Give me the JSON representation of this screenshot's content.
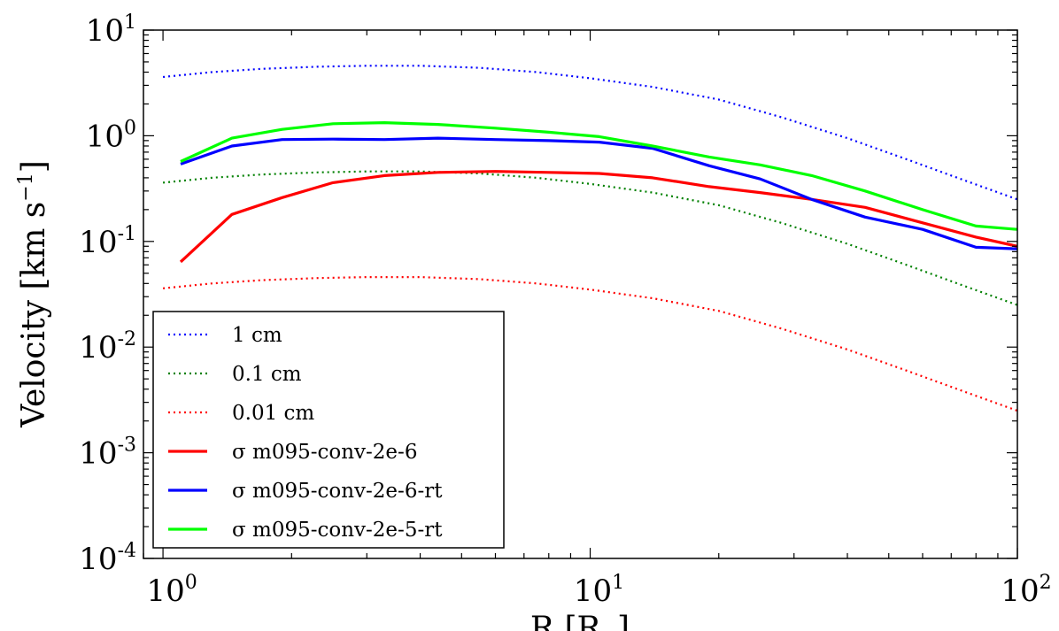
{
  "chart_data": {
    "type": "line",
    "title": "",
    "xlabel": "R [R",
    "xlabel_unit_sub": "⊙",
    "xlabel_close": "]",
    "ylabel": "Velocity [km s",
    "ylabel_sup": "−1",
    "ylabel_close": "]",
    "xscale": "log",
    "yscale": "log",
    "xlim": [
      0.9,
      100
    ],
    "ylim": [
      0.0001,
      10
    ],
    "grid": false,
    "legend_position": "lower-left",
    "x_ticks": [
      {
        "value": 1,
        "base": "10",
        "exp": "0"
      },
      {
        "value": 10,
        "base": "10",
        "exp": "1"
      },
      {
        "value": 100,
        "base": "10",
        "exp": "2"
      }
    ],
    "y_ticks": [
      {
        "value": 0.0001,
        "base": "10",
        "exp": "-4"
      },
      {
        "value": 0.001,
        "base": "10",
        "exp": "-3"
      },
      {
        "value": 0.01,
        "base": "10",
        "exp": "-2"
      },
      {
        "value": 0.1,
        "base": "10",
        "exp": "-1"
      },
      {
        "value": 1,
        "base": "10",
        "exp": "0"
      },
      {
        "value": 10,
        "base": "10",
        "exp": "1"
      }
    ],
    "series": [
      {
        "name": "1 cm",
        "color": "#0000ff",
        "style": "dotted",
        "points": [
          [
            1.0,
            3.6
          ],
          [
            1.3,
            4.0
          ],
          [
            1.7,
            4.3
          ],
          [
            2.3,
            4.5
          ],
          [
            3.0,
            4.6
          ],
          [
            4.0,
            4.6
          ],
          [
            5.5,
            4.4
          ],
          [
            7.5,
            4.0
          ],
          [
            10,
            3.5
          ],
          [
            14,
            2.9
          ],
          [
            20,
            2.2
          ],
          [
            28,
            1.5
          ],
          [
            40,
            0.95
          ],
          [
            55,
            0.6
          ],
          [
            75,
            0.38
          ],
          [
            100,
            0.25
          ]
        ]
      },
      {
        "name": "0.1 cm",
        "color": "#008000",
        "style": "dotted",
        "points": [
          [
            1.0,
            0.36
          ],
          [
            1.3,
            0.4
          ],
          [
            1.7,
            0.43
          ],
          [
            2.3,
            0.45
          ],
          [
            3.0,
            0.46
          ],
          [
            4.0,
            0.46
          ],
          [
            5.5,
            0.44
          ],
          [
            7.5,
            0.4
          ],
          [
            10,
            0.35
          ],
          [
            14,
            0.29
          ],
          [
            20,
            0.22
          ],
          [
            28,
            0.15
          ],
          [
            40,
            0.095
          ],
          [
            55,
            0.06
          ],
          [
            75,
            0.038
          ],
          [
            100,
            0.025
          ]
        ]
      },
      {
        "name": "0.01 cm",
        "color": "#ff0000",
        "style": "dotted",
        "points": [
          [
            1.0,
            0.036
          ],
          [
            1.3,
            0.04
          ],
          [
            1.7,
            0.043
          ],
          [
            2.3,
            0.045
          ],
          [
            3.0,
            0.046
          ],
          [
            4.0,
            0.046
          ],
          [
            5.5,
            0.044
          ],
          [
            7.5,
            0.04
          ],
          [
            10,
            0.035
          ],
          [
            14,
            0.029
          ],
          [
            20,
            0.022
          ],
          [
            28,
            0.015
          ],
          [
            40,
            0.0095
          ],
          [
            55,
            0.006
          ],
          [
            75,
            0.0038
          ],
          [
            100,
            0.0025
          ]
        ]
      },
      {
        "name": "σ m095-conv-2e-6",
        "color": "#ff0000",
        "style": "solid",
        "points": [
          [
            1.1,
            0.064
          ],
          [
            1.45,
            0.18
          ],
          [
            1.9,
            0.26
          ],
          [
            2.5,
            0.36
          ],
          [
            3.3,
            0.42
          ],
          [
            4.4,
            0.45
          ],
          [
            6.0,
            0.46
          ],
          [
            8.0,
            0.45
          ],
          [
            10.5,
            0.44
          ],
          [
            14,
            0.4
          ],
          [
            19,
            0.33
          ],
          [
            25,
            0.29
          ],
          [
            33,
            0.25
          ],
          [
            44,
            0.21
          ],
          [
            60,
            0.15
          ],
          [
            80,
            0.11
          ],
          [
            100,
            0.09
          ]
        ]
      },
      {
        "name": "σ m095-conv-2e-6-rt",
        "color": "#0000ff",
        "style": "solid",
        "points": [
          [
            1.1,
            0.54
          ],
          [
            1.45,
            0.8
          ],
          [
            1.9,
            0.92
          ],
          [
            2.5,
            0.93
          ],
          [
            3.3,
            0.92
          ],
          [
            4.4,
            0.95
          ],
          [
            6.0,
            0.92
          ],
          [
            8.0,
            0.9
          ],
          [
            10.5,
            0.87
          ],
          [
            14,
            0.76
          ],
          [
            19,
            0.52
          ],
          [
            25,
            0.39
          ],
          [
            33,
            0.25
          ],
          [
            44,
            0.17
          ],
          [
            60,
            0.13
          ],
          [
            80,
            0.088
          ],
          [
            100,
            0.085
          ]
        ]
      },
      {
        "name": "σ m095-conv-2e-5-rt",
        "color": "#00ff00",
        "style": "solid",
        "points": [
          [
            1.1,
            0.57
          ],
          [
            1.45,
            0.95
          ],
          [
            1.9,
            1.15
          ],
          [
            2.5,
            1.3
          ],
          [
            3.3,
            1.33
          ],
          [
            4.4,
            1.28
          ],
          [
            6.0,
            1.18
          ],
          [
            8.0,
            1.08
          ],
          [
            10.5,
            0.98
          ],
          [
            14,
            0.8
          ],
          [
            19,
            0.63
          ],
          [
            25,
            0.53
          ],
          [
            33,
            0.42
          ],
          [
            44,
            0.3
          ],
          [
            60,
            0.2
          ],
          [
            80,
            0.14
          ],
          [
            100,
            0.13
          ]
        ]
      }
    ]
  }
}
